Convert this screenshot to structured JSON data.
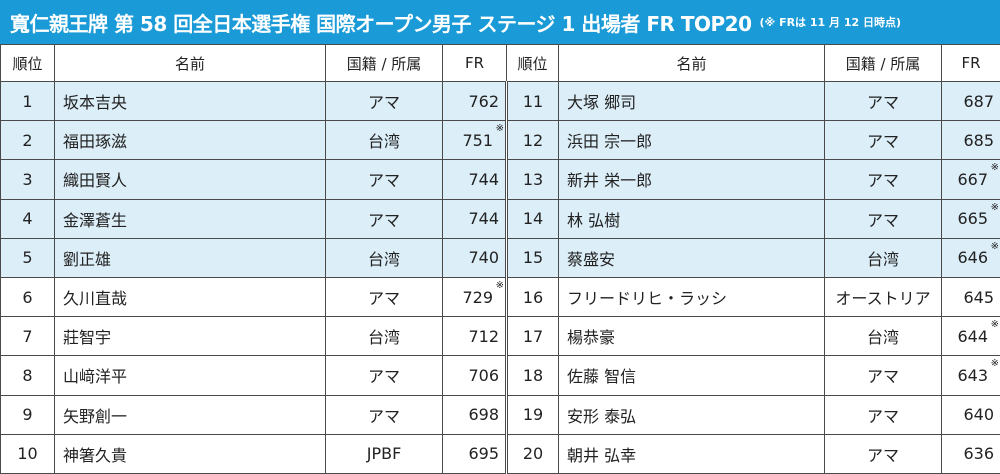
{
  "header": {
    "title": "寬仁親王牌 第 58 回全日本選手権 国際オープン男子 ステージ 1 出場者 FR TOP20",
    "note": "(※ FRは 11 月 12 日時点)"
  },
  "columns": {
    "rank": "順位",
    "name": "名前",
    "affiliation": "国籍 / 所属",
    "fr": "FR"
  },
  "colors": {
    "header_bg": "#1a9ad6",
    "highlight_row": "#dceef8"
  },
  "rows": [
    {
      "left": {
        "rank": "1",
        "name": "坂本吉央",
        "aff": "アマ",
        "fr": "762",
        "mark": false
      },
      "right": {
        "rank": "11",
        "name": "大塚 郷司",
        "aff": "アマ",
        "fr": "687",
        "mark": false
      }
    },
    {
      "left": {
        "rank": "2",
        "name": "福田琢滋",
        "aff": "台湾",
        "fr": "751",
        "mark": true
      },
      "right": {
        "rank": "12",
        "name": "浜田 宗一郎",
        "aff": "アマ",
        "fr": "685",
        "mark": false
      }
    },
    {
      "left": {
        "rank": "3",
        "name": "織田賢人",
        "aff": "アマ",
        "fr": "744",
        "mark": false
      },
      "right": {
        "rank": "13",
        "name": "新井 栄一郎",
        "aff": "アマ",
        "fr": "667",
        "mark": true
      }
    },
    {
      "left": {
        "rank": "4",
        "name": "金澤蒼生",
        "aff": "アマ",
        "fr": "744",
        "mark": false
      },
      "right": {
        "rank": "14",
        "name": "林 弘樹",
        "aff": "アマ",
        "fr": "665",
        "mark": true
      }
    },
    {
      "left": {
        "rank": "5",
        "name": "劉正雄",
        "aff": "台湾",
        "fr": "740",
        "mark": false
      },
      "right": {
        "rank": "15",
        "name": "蔡盛安",
        "aff": "台湾",
        "fr": "646",
        "mark": true
      }
    },
    {
      "left": {
        "rank": "6",
        "name": "久川直哉",
        "aff": "アマ",
        "fr": "729",
        "mark": true
      },
      "right": {
        "rank": "16",
        "name": "フリードリヒ・ラッシ",
        "aff": "オーストリア",
        "fr": "645",
        "mark": false
      }
    },
    {
      "left": {
        "rank": "7",
        "name": "莊智宇",
        "aff": "台湾",
        "fr": "712",
        "mark": false
      },
      "right": {
        "rank": "17",
        "name": "楊恭豪",
        "aff": "台湾",
        "fr": "644",
        "mark": true
      }
    },
    {
      "left": {
        "rank": "8",
        "name": "山﨑洋平",
        "aff": "アマ",
        "fr": "706",
        "mark": false
      },
      "right": {
        "rank": "18",
        "name": "佐藤 智信",
        "aff": "アマ",
        "fr": "643",
        "mark": true
      }
    },
    {
      "left": {
        "rank": "9",
        "name": "矢野創一",
        "aff": "アマ",
        "fr": "698",
        "mark": false
      },
      "right": {
        "rank": "19",
        "name": "安形 泰弘",
        "aff": "アマ",
        "fr": "640",
        "mark": false
      }
    },
    {
      "left": {
        "rank": "10",
        "name": "神箸久貴",
        "aff": "JPBF",
        "fr": "695",
        "mark": false
      },
      "right": {
        "rank": "20",
        "name": "朝井 弘幸",
        "aff": "アマ",
        "fr": "636",
        "mark": false
      }
    }
  ]
}
